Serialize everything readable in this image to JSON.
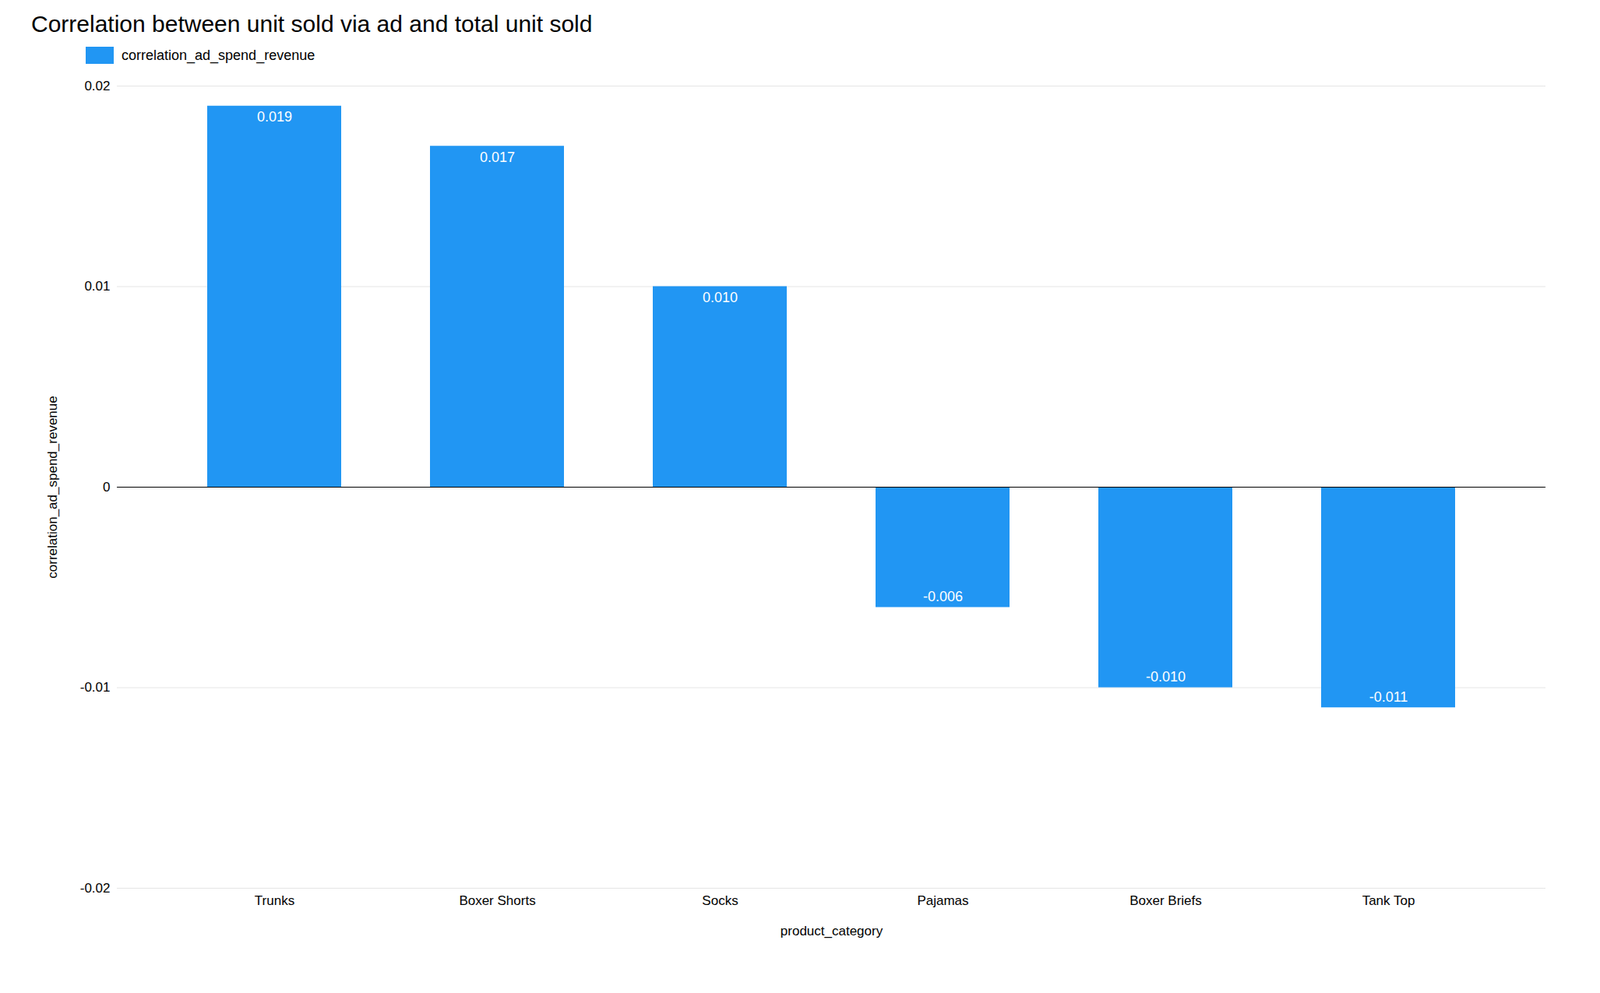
{
  "chart_data": {
    "type": "bar",
    "title": "Correlation between unit sold via ad and total unit sold",
    "xlabel": "product_category",
    "ylabel": "correlation_ad_spend_revenue",
    "categories": [
      "Trunks",
      "Boxer Shorts",
      "Socks",
      "Pajamas",
      "Boxer Briefs",
      "Tank Top"
    ],
    "series": [
      {
        "name": "correlation_ad_spend_revenue",
        "color": "#2196F3",
        "values": [
          0.019,
          0.017,
          0.01,
          -0.006,
          -0.01,
          -0.011
        ],
        "value_labels": [
          "0.019",
          "0.017",
          "0.010",
          "-0.006",
          "-0.010",
          "-0.011"
        ]
      }
    ],
    "ylim": [
      -0.02,
      0.02
    ],
    "yticks": [
      -0.02,
      -0.01,
      0,
      0.01,
      0.02
    ],
    "grid": true,
    "legend": "top",
    "data_labels": true
  }
}
